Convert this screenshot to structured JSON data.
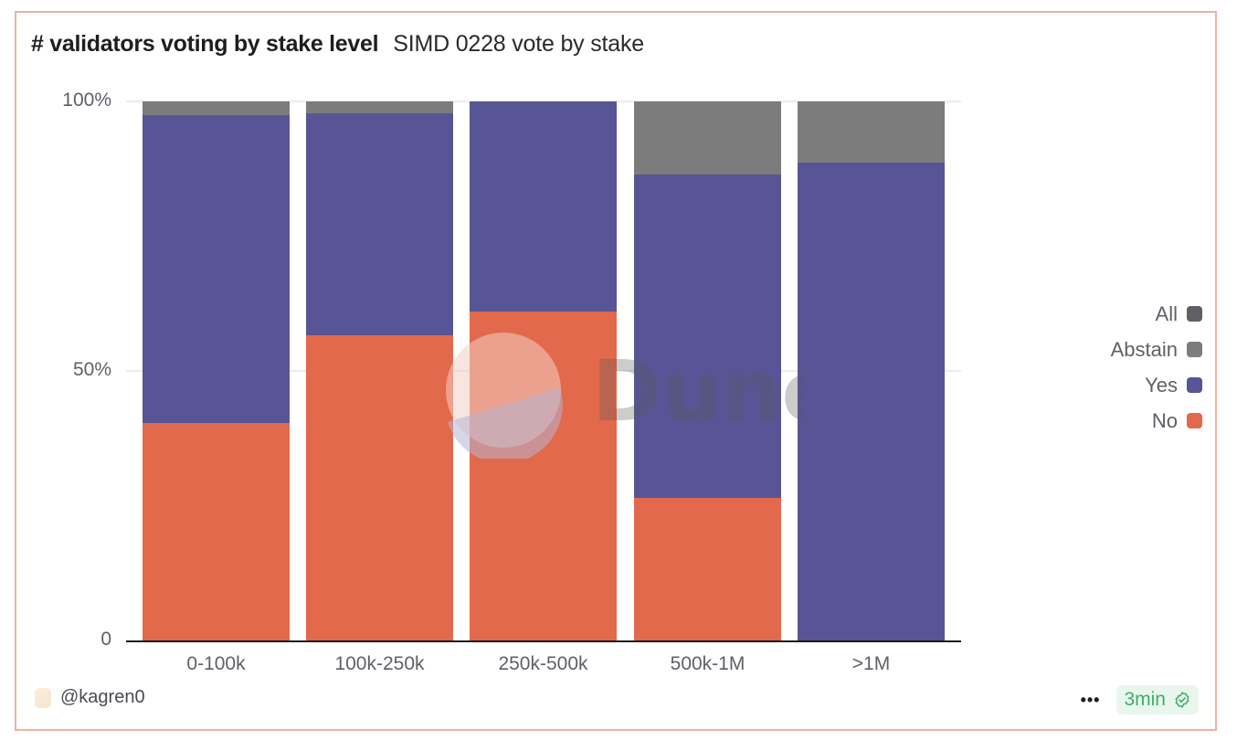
{
  "header": {
    "title": "# validators voting by stake level",
    "subtitle": "SIMD 0228 vote by stake"
  },
  "colors": {
    "all": "#5f6066",
    "abstain": "#7c7c7c",
    "yes": "#575595",
    "no": "#e2694b",
    "border": "#eab3a3",
    "badge_text": "#3fae6a",
    "badge_bg": "#e9f6ee"
  },
  "chart_data": {
    "type": "bar",
    "stacked": true,
    "normalized": true,
    "title": "# validators voting by stake level",
    "subtitle": "SIMD 0228 vote by stake",
    "xlabel": "",
    "ylabel": "",
    "ylim": [
      0,
      100
    ],
    "yticks": [
      "0",
      "50%",
      "100%"
    ],
    "categories": [
      "0-100k",
      "100k-250k",
      "250k-500k",
      "500k-1M",
      ">1M"
    ],
    "series": [
      {
        "name": "No",
        "color": "#e2694b",
        "values": [
          40.3,
          56.6,
          61.0,
          26.4,
          0.0
        ]
      },
      {
        "name": "Yes",
        "color": "#575595",
        "values": [
          57.1,
          41.2,
          39.0,
          60.0,
          88.6
        ]
      },
      {
        "name": "Abstain",
        "color": "#7c7c7c",
        "values": [
          2.6,
          2.2,
          0.0,
          13.6,
          11.4
        ]
      },
      {
        "name": "All",
        "color": "#5f6066",
        "values": [
          0,
          0,
          0,
          0,
          0
        ]
      }
    ],
    "legend": [
      "All",
      "Abstain",
      "Yes",
      "No"
    ],
    "legend_position": "right",
    "grid": true
  },
  "legend": {
    "items": [
      {
        "label": "All",
        "color": "#5f6066"
      },
      {
        "label": "Abstain",
        "color": "#7c7c7c"
      },
      {
        "label": "Yes",
        "color": "#575595"
      },
      {
        "label": "No",
        "color": "#e2694b"
      }
    ]
  },
  "watermark": {
    "text": "Dune"
  },
  "footer": {
    "author": "@kagren0",
    "more_label": "•••",
    "refresh_label": "3min"
  }
}
